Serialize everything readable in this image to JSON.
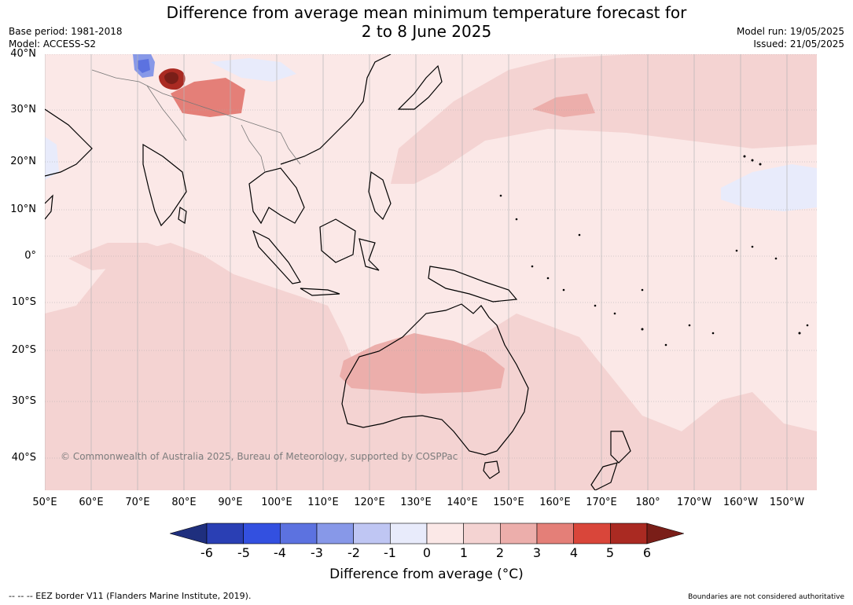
{
  "header": {
    "title_line1": "Difference from average mean minimum temperature forecast for",
    "title_line2": "2 to 8 June 2025",
    "base_period": "Base period: 1981-2018",
    "model": "Model: ACCESS-S2",
    "model_run": "Model run: 19/05/2025",
    "issued": "Issued: 21/05/2025"
  },
  "map": {
    "latitude_labels": [
      "40°N",
      "30°N",
      "20°N",
      "10°N",
      "0°",
      "10°S",
      "20°S",
      "30°S",
      "40°S"
    ],
    "longitude_labels": [
      "50°E",
      "60°E",
      "70°E",
      "80°E",
      "90°E",
      "100°E",
      "110°E",
      "120°E",
      "130°E",
      "140°E",
      "150°E",
      "160°E",
      "170°E",
      "180°",
      "170°W",
      "160°W",
      "150°W"
    ],
    "copyright": "© Commonwealth of Australia 2025, Bureau of Meteorology, supported by COSPPac",
    "regions": [
      {
        "name": "neutral-band-pink",
        "anomaly_class": "0 to 1"
      },
      {
        "name": "indian-ocean-warm",
        "anomaly_class": "1 to 2"
      },
      {
        "name": "central-australia-warm",
        "anomaly_class": "2 to 3"
      },
      {
        "name": "himalaya-hotspot",
        "anomaly_class": "above 6"
      },
      {
        "name": "afghanistan-cold",
        "anomaly_class": "-3 to -2"
      },
      {
        "name": "north-pacific-cool",
        "anomaly_class": "-1 to 0"
      }
    ]
  },
  "colorbar": {
    "ticks": [
      "-6",
      "-5",
      "-4",
      "-3",
      "-2",
      "-1",
      "0",
      "1",
      "2",
      "3",
      "4",
      "5",
      "6"
    ],
    "colors": [
      "#1f2f7e",
      "#2a3fb4",
      "#3350e0",
      "#5c72e0",
      "#8798e8",
      "#bfc6f3",
      "#e8ebfb",
      "#fbe8e7",
      "#f4d3d2",
      "#ecaeab",
      "#e47f78",
      "#d9463a",
      "#aa2a22",
      "#7a1e18"
    ],
    "label": "Difference from average (°C)"
  },
  "footer": {
    "eez_legend": "--  --  -- EEZ border V11 (Flanders Marine Institute, 2019).",
    "boundaries_note": "Boundaries are not considered authoritative"
  }
}
